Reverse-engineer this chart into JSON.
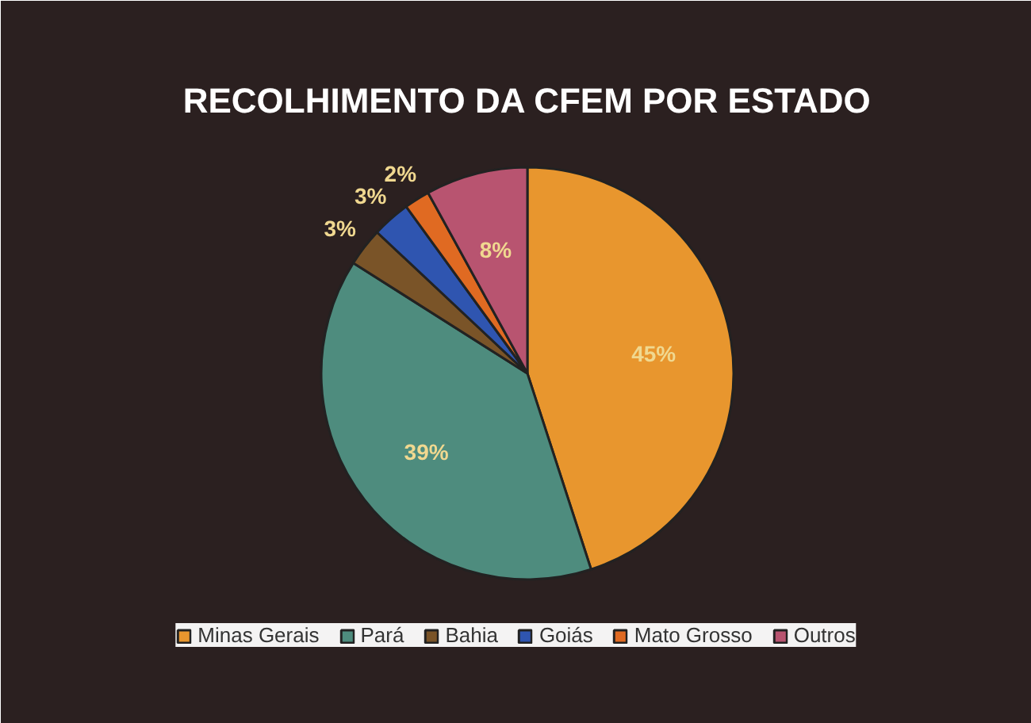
{
  "chart_data": {
    "type": "pie",
    "title": "RECOLHIMENTO DA CFEM POR ESTADO",
    "categories": [
      "Minas Gerais",
      "Pará",
      "Bahia",
      "Goiás",
      "Mato Grosso",
      "Outros"
    ],
    "values": [
      45,
      39,
      3,
      3,
      2,
      8
    ],
    "colors": [
      "#e8962e",
      "#4e8c7e",
      "#7a5428",
      "#2f55b0",
      "#e06a22",
      "#b85470"
    ],
    "value_labels": [
      "45%",
      "39%",
      "3%",
      "3%",
      "2%",
      "8%"
    ],
    "legend": "bottom"
  }
}
